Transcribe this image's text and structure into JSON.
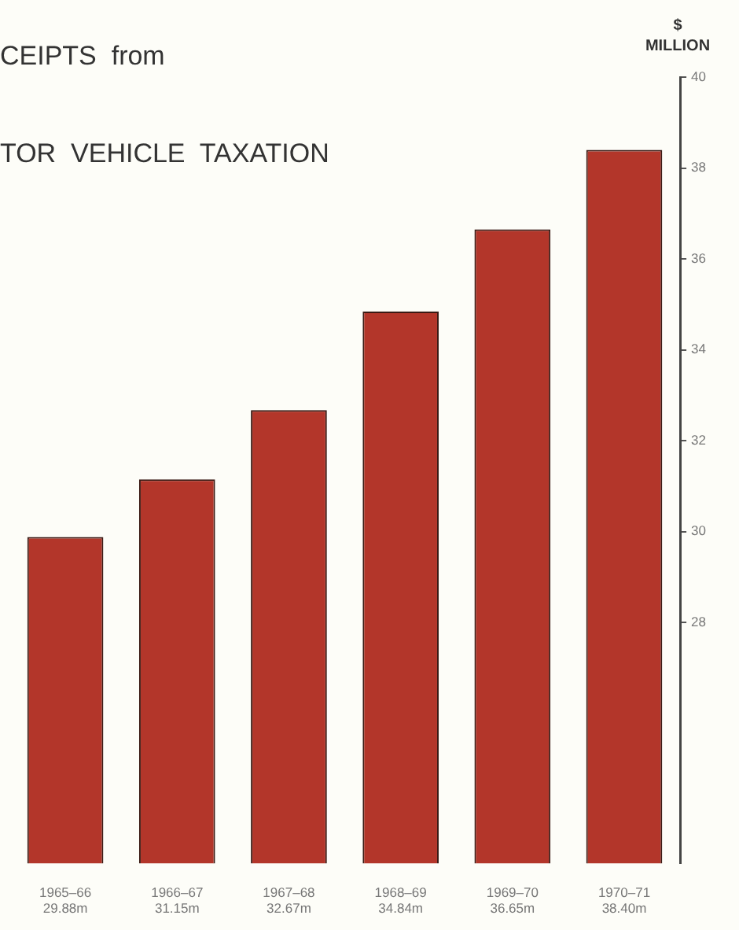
{
  "chart_data": {
    "type": "bar",
    "title": "CEIPTS  from",
    "subtitle": "TOR  VEHICLE  TAXATION",
    "ylabel": "$ MILLION",
    "categories": [
      "1965–66",
      "1966–67",
      "1967–68",
      "1968–69",
      "1969–70",
      "1970–71"
    ],
    "values": [
      29.88,
      31.15,
      32.67,
      34.84,
      36.65,
      38.4
    ],
    "value_labels": [
      "29.88m",
      "31.15m",
      "32.67m",
      "34.84m",
      "36.65m",
      "38.40m"
    ],
    "color": "#b3362a",
    "ylim": [
      22.7,
      40
    ],
    "yticks": [
      28,
      30,
      32,
      34,
      36,
      38,
      40
    ],
    "grid": false,
    "legend": false
  }
}
